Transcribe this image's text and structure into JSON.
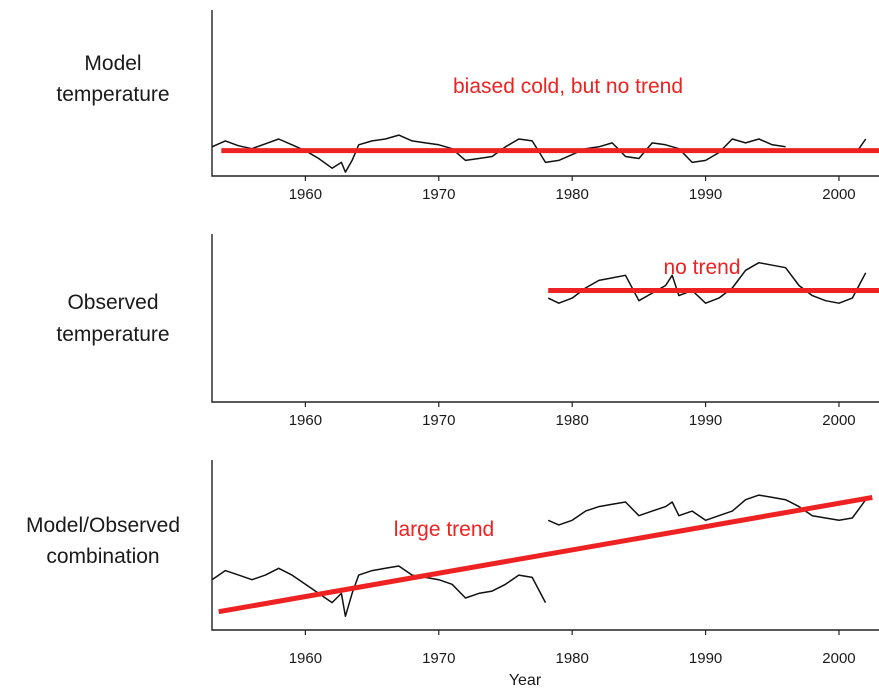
{
  "colors": {
    "trend": "#ee2222",
    "annotation": "#ee2222",
    "series": "#111111",
    "axis": "#222222"
  },
  "chart_data": [
    {
      "type": "line",
      "row_label": [
        "Model",
        "temperature"
      ],
      "xlabel": "",
      "xlim": [
        1953,
        2003
      ],
      "ylim": [
        -1.3,
        2.6
      ],
      "xticks": [
        1960,
        1970,
        1980,
        1990,
        2000
      ],
      "annotation": "biased cold, but no trend",
      "series": [
        {
          "x": [
            1953,
            1954,
            1955,
            1956,
            1957,
            1958,
            1959,
            1960,
            1961,
            1962,
            1962.7,
            1963,
            1963.5,
            1964,
            1965,
            1966,
            1967,
            1968,
            1969,
            1970,
            1971,
            1972,
            1973,
            1974,
            1975,
            1976,
            1977,
            1978,
            1979,
            1980,
            1981,
            1982,
            1983,
            1984,
            1985,
            1986,
            1987,
            1988,
            1989,
            1990,
            1991,
            1992,
            1993,
            1994,
            1995,
            1996,
            1997,
            2001.5,
            2002
          ],
          "y": [
            0.2,
            0.5,
            0.25,
            0.1,
            0.35,
            0.6,
            0.3,
            0.0,
            -0.4,
            -0.9,
            -0.6,
            -1.1,
            -0.5,
            0.3,
            0.5,
            0.6,
            0.8,
            0.5,
            0.4,
            0.3,
            0.1,
            -0.5,
            -0.4,
            -0.3,
            0.2,
            0.6,
            0.5,
            -0.6,
            -0.5,
            -0.2,
            0.1,
            0.2,
            0.4,
            -0.3,
            -0.4,
            0.4,
            0.3,
            0.1,
            -0.6,
            -0.5,
            -0.1,
            0.6,
            0.4,
            0.6,
            0.3,
            0.2,
            null,
            0.1,
            0.6
          ]
        }
      ],
      "trend": {
        "x": [
          1953.7,
          2003
        ],
        "y": [
          0.0,
          0.0
        ]
      }
    },
    {
      "type": "line",
      "row_label": [
        "Observed",
        "temperature"
      ],
      "xlabel": "",
      "xlim": [
        1953,
        2003
      ],
      "ylim": [
        -4.4,
        1.6
      ],
      "xticks": [
        1960,
        1970,
        1980,
        1990,
        2000
      ],
      "annotation": "no trend",
      "series": [
        {
          "x": [
            1978.2,
            1979,
            1980,
            1981,
            1982,
            1983,
            1984,
            1985,
            1986,
            1987,
            1987.5,
            1988,
            1989,
            1990,
            1991,
            1992,
            1993,
            1994,
            1995,
            1996,
            1997,
            1998,
            1999,
            2000,
            2001,
            2001.5,
            2002
          ],
          "y": [
            -0.3,
            -0.5,
            -0.3,
            0.1,
            0.4,
            0.5,
            0.6,
            -0.4,
            -0.1,
            0.2,
            0.6,
            -0.2,
            0.0,
            -0.5,
            -0.3,
            0.1,
            0.8,
            1.1,
            1.0,
            0.9,
            0.2,
            -0.2,
            -0.4,
            -0.5,
            -0.3,
            0.2,
            0.7
          ]
        }
      ],
      "trend": {
        "x": [
          1978.2,
          2003
        ],
        "y": [
          0.0,
          0.0
        ]
      }
    },
    {
      "type": "line",
      "row_label": [
        "Model/Observed",
        "combination"
      ],
      "xlabel": "Year",
      "xlim": [
        1953,
        2003
      ],
      "ylim": [
        -0.5,
        3.0
      ],
      "xticks": [
        1960,
        1970,
        1980,
        1990,
        2000
      ],
      "annotation": "large trend",
      "series": [
        {
          "x": [
            1953,
            1954,
            1955,
            1956,
            1957,
            1958,
            1959,
            1960,
            1961,
            1962,
            1962.7,
            1963,
            1963.5,
            1964,
            1965,
            1966,
            1967,
            1968,
            1969,
            1970,
            1971,
            1972,
            1973,
            1974,
            1975,
            1976,
            1977,
            1978,
            null,
            1978.2,
            1979,
            1980,
            1981,
            1982,
            1983,
            1984,
            1985,
            1986,
            1987,
            1987.5,
            1988,
            1989,
            1990,
            1991,
            1992,
            1993,
            1994,
            1995,
            1996,
            1997,
            1998,
            1999,
            2000,
            2001,
            2001.5,
            2002
          ],
          "y": [
            0.6,
            0.8,
            0.7,
            0.6,
            0.7,
            0.85,
            0.7,
            0.5,
            0.3,
            0.1,
            0.3,
            -0.2,
            0.3,
            0.7,
            0.8,
            0.85,
            0.9,
            0.7,
            0.65,
            0.6,
            0.5,
            0.2,
            0.3,
            0.35,
            0.5,
            0.7,
            0.65,
            0.1,
            null,
            1.9,
            1.8,
            1.9,
            2.1,
            2.2,
            2.25,
            2.3,
            2.0,
            2.1,
            2.2,
            2.3,
            2.0,
            2.1,
            1.9,
            2.0,
            2.1,
            2.35,
            2.45,
            2.4,
            2.35,
            2.2,
            2.0,
            1.95,
            1.9,
            1.95,
            2.15,
            2.35
          ]
        }
      ],
      "trend": {
        "x": [
          1953.5,
          2002.5
        ],
        "y": [
          -0.1,
          2.4
        ]
      }
    }
  ]
}
